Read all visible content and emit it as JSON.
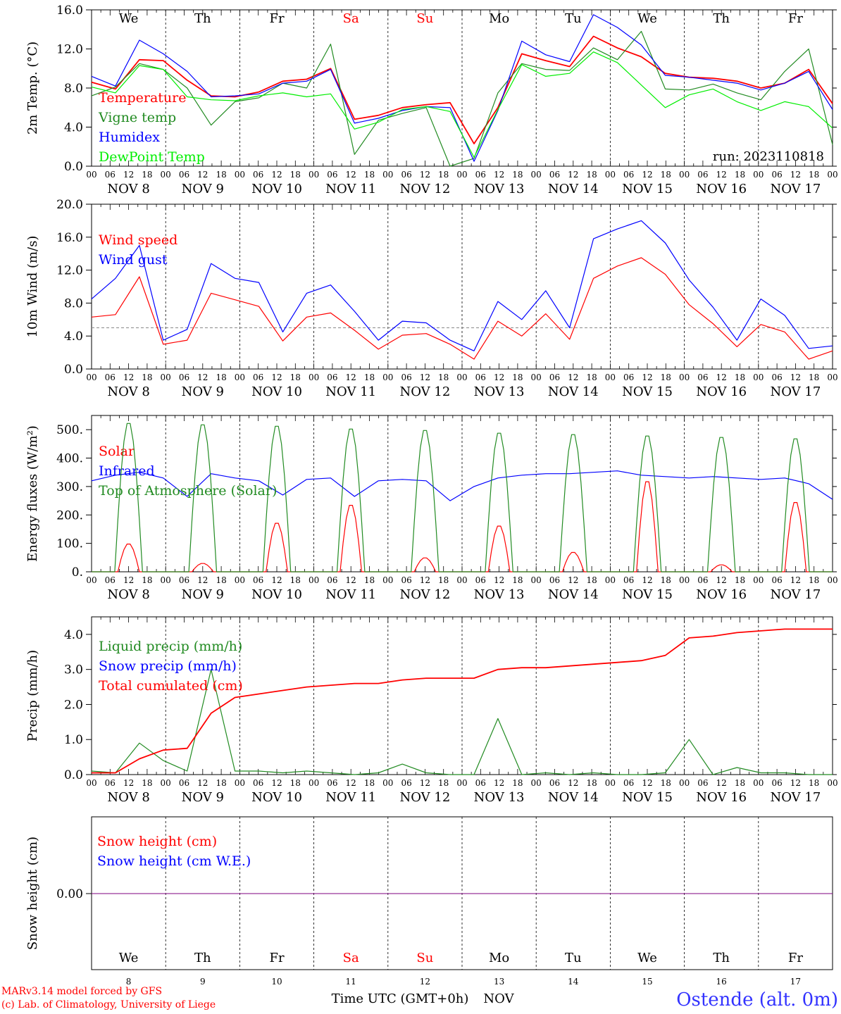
{
  "chart_data": [
    {
      "type": "line",
      "ylabel": "2m Temp. (°C)",
      "ylim": [
        0,
        16
      ],
      "yticks": [
        "0.0",
        "4.0",
        "8.0",
        "12.0",
        "16.0"
      ],
      "day_names": [
        "We",
        "Th",
        "Fr",
        "Sa",
        "Su",
        "Mo",
        "Tu",
        "We",
        "Th",
        "Fr"
      ],
      "weekend_days": [
        3,
        4
      ],
      "date_labels": [
        "NOV  8",
        "NOV  9",
        "NOV 10",
        "NOV 11",
        "NOV 12",
        "NOV 13",
        "NOV 14",
        "NOV 15",
        "NOV 16",
        "NOV 17"
      ],
      "hour_labels": [
        "00",
        "06",
        "12",
        "18"
      ],
      "annotation": "run: 2023110818",
      "x_hours_step": 12,
      "series": [
        {
          "name": "Temperature",
          "color": "#ff0000",
          "values": [
            8.6,
            7.9,
            10.9,
            10.8,
            8.8,
            7.2,
            7.1,
            7.6,
            8.7,
            8.9,
            10.0,
            4.8,
            5.2,
            6.0,
            6.3,
            6.5,
            2.3,
            6.0,
            11.5,
            10.8,
            10.2,
            13.3,
            12.1,
            11.2,
            9.5,
            9.1,
            9.0,
            8.7,
            8.0,
            8.5,
            9.9,
            6.4
          ]
        },
        {
          "name": "Vigne temp",
          "color": "#228b22",
          "values": [
            7.2,
            8.1,
            10.5,
            9.9,
            8.0,
            4.2,
            6.6,
            7.0,
            8.5,
            8.0,
            12.5,
            1.2,
            4.7,
            5.4,
            6.0,
            0.0,
            0.8,
            7.5,
            10.5,
            9.9,
            9.8,
            12.1,
            10.9,
            13.8,
            7.9,
            7.8,
            8.4,
            7.5,
            6.8,
            9.7,
            12.0,
            2.2
          ]
        },
        {
          "name": "Humidex",
          "color": "#0000ff",
          "values": [
            9.2,
            8.2,
            12.9,
            11.5,
            9.7,
            7.1,
            7.2,
            7.4,
            8.5,
            8.7,
            9.9,
            4.4,
            4.9,
            5.7,
            6.1,
            6.0,
            0.5,
            5.7,
            12.8,
            11.4,
            10.7,
            15.5,
            14.2,
            12.4,
            9.3,
            9.1,
            8.8,
            8.5,
            7.8,
            8.5,
            9.7,
            5.8
          ]
        },
        {
          "name": "DewPoint Temp",
          "color": "#00ee00",
          "values": [
            8.1,
            7.5,
            10.3,
            9.9,
            7.1,
            6.8,
            6.7,
            7.2,
            7.5,
            7.1,
            7.4,
            3.8,
            4.5,
            5.8,
            6.1,
            5.6,
            0.9,
            5.8,
            10.4,
            9.2,
            9.5,
            11.7,
            10.6,
            8.3,
            6.0,
            7.3,
            7.9,
            6.6,
            5.7,
            6.6,
            6.1,
            3.9
          ]
        }
      ]
    },
    {
      "type": "line",
      "ylabel": "10m Wind (m/s)",
      "ylim": [
        0,
        20
      ],
      "yticks": [
        "0.0",
        "4.0",
        "8.0",
        "12.0",
        "16.0",
        "20.0"
      ],
      "date_labels": [
        "NOV  8",
        "NOV  9",
        "NOV 10",
        "NOV 11",
        "NOV 12",
        "NOV 13",
        "NOV 14",
        "NOV 15",
        "NOV 16",
        "NOV 17"
      ],
      "hour_labels": [
        "00",
        "06",
        "12",
        "18"
      ],
      "reference_line": 5,
      "x_hours_step": 12,
      "series": [
        {
          "name": "Wind speed",
          "color": "#ff0000",
          "values": [
            6.3,
            6.6,
            11.2,
            3.0,
            3.5,
            9.2,
            8.4,
            7.6,
            3.4,
            6.3,
            6.8,
            4.7,
            2.4,
            4.1,
            4.3,
            3.0,
            1.2,
            5.8,
            4.0,
            6.7,
            3.6,
            11.0,
            12.5,
            13.5,
            11.5,
            7.8,
            5.5,
            2.7,
            5.4,
            4.5,
            1.2,
            2.2
          ]
        },
        {
          "name": "Wind gust",
          "color": "#0000ff",
          "values": [
            8.5,
            11.0,
            15.0,
            3.5,
            4.8,
            12.8,
            11.0,
            10.5,
            4.5,
            9.2,
            10.2,
            7.0,
            3.5,
            5.8,
            5.6,
            3.5,
            2.2,
            8.2,
            6.0,
            9.5,
            5.0,
            15.8,
            17.0,
            18.0,
            15.3,
            10.8,
            7.5,
            3.5,
            8.5,
            6.5,
            2.5,
            2.8
          ]
        }
      ]
    },
    {
      "type": "line",
      "ylabel": "Energy fluxes (W/m²)",
      "ylim": [
        0,
        550
      ],
      "yticks": [
        "0.",
        "100.",
        "200.",
        "300.",
        "400.",
        "500."
      ],
      "date_labels": [
        "NOV  8",
        "NOV  9",
        "NOV 10",
        "NOV 11",
        "NOV 12",
        "NOV 13",
        "NOV 14",
        "NOV 15",
        "NOV 16",
        "NOV 17"
      ],
      "hour_labels": [
        "00",
        "06",
        "12",
        "18"
      ],
      "series": [
        {
          "name": "Solar",
          "color": "#ff0000",
          "daily_peak": [
            100,
            30,
            175,
            240,
            50,
            165,
            70,
            325,
            25,
            250
          ]
        },
        {
          "name": "Infrared",
          "color": "#0000ff",
          "x_hours_step": 12,
          "values": [
            320,
            340,
            350,
            330,
            265,
            345,
            330,
            320,
            270,
            325,
            330,
            265,
            320,
            325,
            320,
            250,
            300,
            330,
            340,
            345,
            345,
            350,
            355,
            340,
            335,
            330,
            335,
            330,
            325,
            330,
            310,
            255
          ]
        },
        {
          "name": "Top of Atmosphere (Solar)",
          "color": "#228b22",
          "daily_peak": [
            530,
            525,
            520,
            510,
            505,
            495,
            490,
            485,
            480,
            475
          ]
        }
      ]
    },
    {
      "type": "line",
      "ylabel": "Precip (mm/h)",
      "ylim": [
        0,
        4.5
      ],
      "yticks": [
        "0.0",
        "1.0",
        "2.0",
        "3.0",
        "4.0"
      ],
      "date_labels": [
        "NOV  8",
        "NOV  9",
        "NOV 10",
        "NOV 11",
        "NOV 12",
        "NOV 13",
        "NOV 14",
        "NOV 15",
        "NOV 16",
        "NOV 17"
      ],
      "hour_labels": [
        "00",
        "06",
        "12",
        "18"
      ],
      "x_hours_step": 12,
      "series": [
        {
          "name": "Liquid precip (mm/h)",
          "color": "#228b22",
          "values": [
            0.1,
            0.05,
            0.9,
            0.4,
            0.1,
            3.0,
            0.1,
            0.1,
            0.05,
            0.1,
            0.05,
            0.0,
            0.05,
            0.3,
            0.05,
            0.0,
            0.0,
            1.6,
            0.0,
            0.05,
            0.0,
            0.05,
            0.0,
            0.0,
            0.05,
            1.0,
            0.0,
            0.2,
            0.05,
            0.05,
            0.0,
            0.0
          ]
        },
        {
          "name": "Snow precip (mm/h)",
          "color": "#0000ff",
          "values": []
        },
        {
          "name": "Total cumulated (cm)",
          "color": "#ff0000",
          "values": [
            0.05,
            0.05,
            0.45,
            0.7,
            0.75,
            1.75,
            2.2,
            2.3,
            2.4,
            2.5,
            2.55,
            2.6,
            2.6,
            2.7,
            2.75,
            2.75,
            2.75,
            3.0,
            3.05,
            3.05,
            3.1,
            3.15,
            3.2,
            3.25,
            3.4,
            3.9,
            3.95,
            4.05,
            4.1,
            4.15,
            4.15,
            4.15
          ]
        }
      ]
    },
    {
      "type": "line",
      "ylabel": "Snow height (cm)",
      "yticks": [
        "0.00"
      ],
      "day_names": [
        "We",
        "Th",
        "Fr",
        "Sa",
        "Su",
        "Mo",
        "Tu",
        "We",
        "Th",
        "Fr"
      ],
      "weekend_days": [
        3,
        4
      ],
      "day_numbers": [
        "8",
        "9",
        "10",
        "11",
        "12",
        "13",
        "14",
        "15",
        "16",
        "17"
      ],
      "xlabel": "Time UTC (GMT+0h)",
      "xlabel_month": "NOV",
      "series": [
        {
          "name": "Snow height (cm)",
          "color": "#ff0000",
          "values": [
            0,
            0
          ]
        },
        {
          "name": "Snow height (cm W.E.)",
          "color": "#0000ff",
          "values": [
            0,
            0
          ]
        }
      ]
    }
  ],
  "footer": {
    "credit_line1": "MARv3.14 model forced by GFS",
    "credit_line2": "(c) Lab. of Climatology, University of Liege",
    "station": "Ostende (alt. 0m)"
  },
  "colors": {
    "axis": "#000000",
    "weekend": "#ff0000",
    "station": "#3333ff"
  }
}
